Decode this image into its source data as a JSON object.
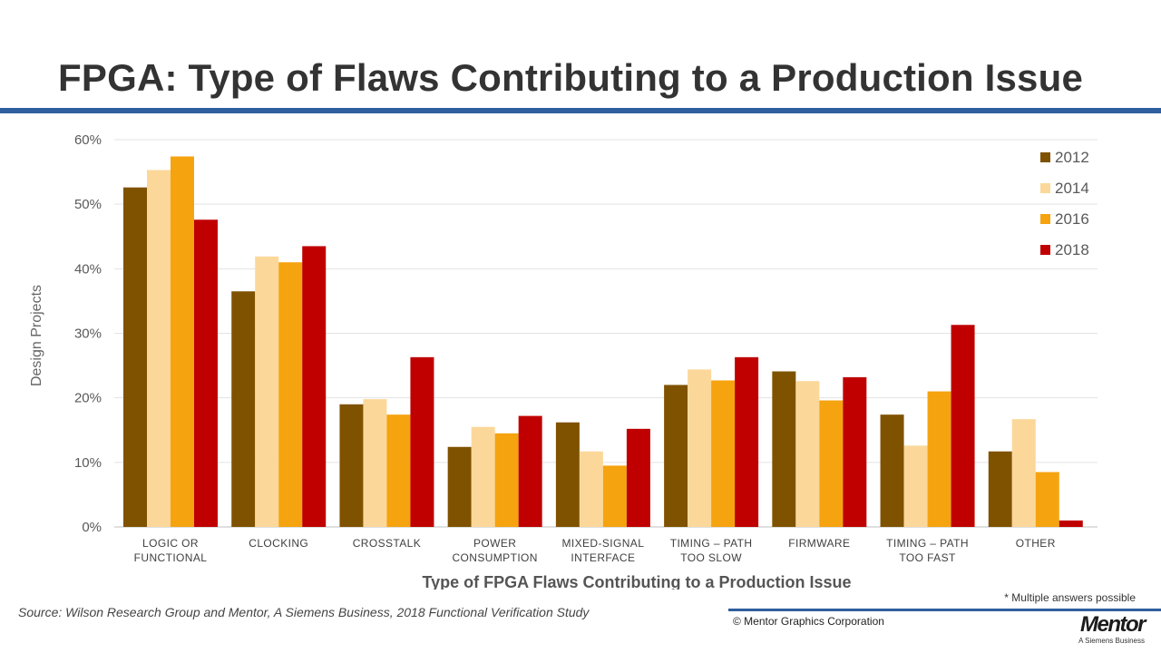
{
  "slide": {
    "title": "FPGA: Type of Flaws Contributing to a Production Issue",
    "source": "Source:  Wilson Research Group and Mentor, A Siemens Business, 2018 Functional Verification Study",
    "footnote": "* Multiple answers possible",
    "copyright": "© Mentor Graphics Corporation",
    "logo_text": "Mentor",
    "logo_tagline": "A Siemens Business",
    "accent_color": "#2f5f9e"
  },
  "chart_data": {
    "type": "bar",
    "xlabel": "Type of FPGA Flaws Contributing to a Production Issue",
    "ylabel": "Design Projects",
    "ylim": [
      0,
      60
    ],
    "yticks": [
      "0%",
      "10%",
      "20%",
      "30%",
      "40%",
      "50%",
      "60%"
    ],
    "grid": true,
    "legend_position": "top-right",
    "categories": [
      [
        "LOGIC OR",
        "FUNCTIONAL"
      ],
      [
        "CLOCKING"
      ],
      [
        "CROSSTALK"
      ],
      [
        "POWER",
        "CONSUMPTION"
      ],
      [
        "MIXED-SIGNAL",
        "INTERFACE"
      ],
      [
        "TIMING  – PATH",
        "TOO SLOW"
      ],
      [
        "FIRMWARE"
      ],
      [
        "TIMING  – PATH",
        "TOO FAST"
      ],
      [
        "OTHER"
      ]
    ],
    "series": [
      {
        "name": "2012",
        "color": "#7f5200",
        "values": [
          52.6,
          36.5,
          19.0,
          12.4,
          16.2,
          22.0,
          24.1,
          17.4,
          11.7
        ]
      },
      {
        "name": "2014",
        "color": "#fbd89a",
        "values": [
          55.3,
          41.9,
          19.8,
          15.5,
          11.7,
          24.4,
          22.6,
          12.6,
          16.7
        ]
      },
      {
        "name": "2016",
        "color": "#f5a30f",
        "values": [
          57.4,
          41.0,
          17.4,
          14.5,
          9.5,
          22.7,
          19.6,
          21.0,
          8.5
        ]
      },
      {
        "name": "2018",
        "color": "#c00000",
        "values": [
          47.6,
          43.5,
          26.3,
          17.2,
          15.2,
          26.3,
          23.2,
          31.3,
          1.0
        ]
      }
    ]
  }
}
